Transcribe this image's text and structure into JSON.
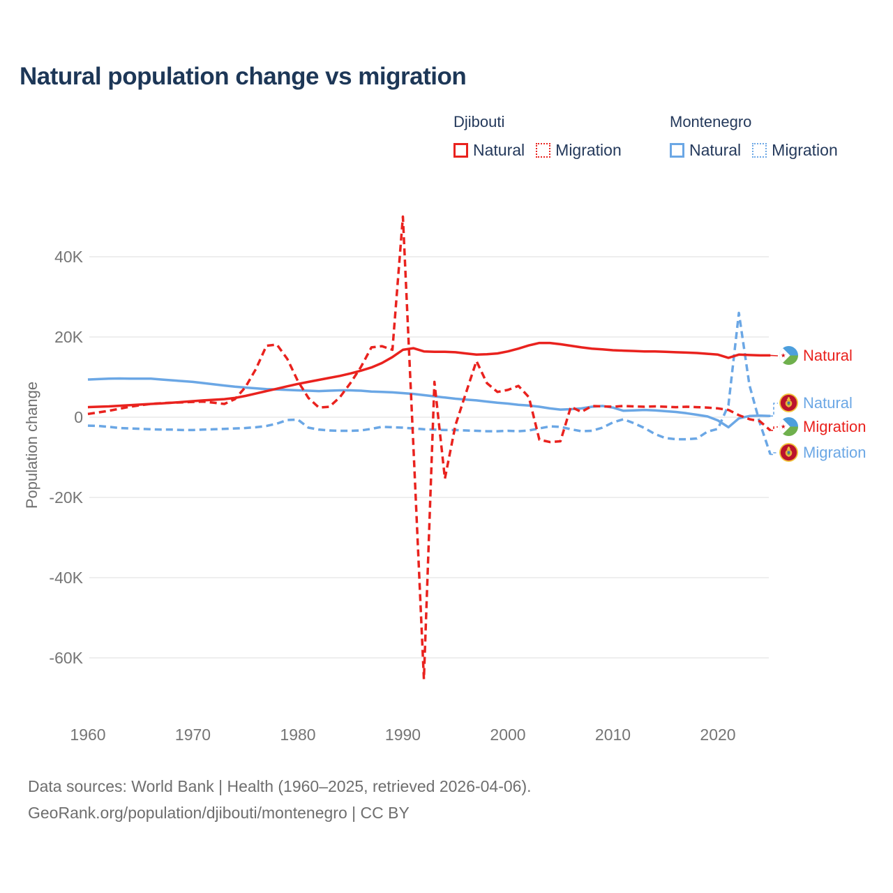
{
  "title": "Natural population change vs migration",
  "colors": {
    "djibouti": "#e9221e",
    "montenegro": "#6ba7e5",
    "title_text": "#1d3757",
    "legend_text": "#24395b",
    "axis_text": "#757575",
    "grid": "#e8e8e8",
    "footer_text": "#6e6e6e"
  },
  "legend": {
    "groups": [
      {
        "country": "Djibouti",
        "items": [
          {
            "label": "Natural",
            "style": "solid"
          },
          {
            "label": "Migration",
            "style": "dashed"
          }
        ]
      },
      {
        "country": "Montenegro",
        "items": [
          {
            "label": "Natural",
            "style": "solid"
          },
          {
            "label": "Migration",
            "style": "dashed"
          }
        ]
      }
    ]
  },
  "y_axis_title": "Population change",
  "end_labels": [
    {
      "label": "Natural",
      "country": "Djibouti",
      "color": "red"
    },
    {
      "label": "Natural",
      "country": "Montenegro",
      "color": "blue"
    },
    {
      "label": "Migration",
      "country": "Djibouti",
      "color": "red"
    },
    {
      "label": "Migration",
      "country": "Montenegro",
      "color": "blue"
    }
  ],
  "footer": {
    "line1": "Data sources: World Bank | Health (1960–2025, retrieved 2026-04-06).",
    "line2": "GeoRank.org/population/djibouti/montenegro | CC BY"
  },
  "chart_data": {
    "type": "line",
    "title": "Natural population change vs migration",
    "xlabel": "",
    "ylabel": "Population change",
    "x_start": 1960,
    "x_end": 2025,
    "x_ticks": [
      1960,
      1970,
      1980,
      1990,
      2000,
      2010,
      2020
    ],
    "y_ticks_k": [
      40,
      20,
      0,
      -20,
      -40,
      -60
    ],
    "y_tick_labels": [
      "40K",
      "20K",
      "0",
      "-20K",
      "-40K",
      "-60K"
    ],
    "ylim_k": [
      -68,
      52
    ],
    "grid": true,
    "legend_position": "top-right",
    "units": "persons per year (K = thousands)",
    "series": [
      {
        "name": "Montenegro Migration",
        "color": "#6ba7e5",
        "dash": "dashed",
        "values_k": [
          -2.1,
          -2.2,
          -2.4,
          -2.7,
          -2.8,
          -2.9,
          -3.0,
          -3.1,
          -3.1,
          -3.2,
          -3.2,
          -3.1,
          -3.0,
          -2.9,
          -2.8,
          -2.7,
          -2.5,
          -2.2,
          -1.6,
          -0.7,
          -0.6,
          -2.6,
          -3.1,
          -3.3,
          -3.4,
          -3.4,
          -3.3,
          -2.9,
          -2.4,
          -2.5,
          -2.6,
          -2.8,
          -3.0,
          -3.1,
          -3.2,
          -3.2,
          -3.3,
          -3.4,
          -3.5,
          -3.5,
          -3.4,
          -3.5,
          -3.3,
          -2.8,
          -2.3,
          -2.4,
          -3.0,
          -3.5,
          -3.4,
          -2.6,
          -1.3,
          -0.5,
          -1.5,
          -2.7,
          -4.2,
          -5.2,
          -5.5,
          -5.5,
          -5.3,
          -3.6,
          -2.9,
          3.0,
          26.0,
          8.0,
          -1.5,
          -9.3
        ]
      },
      {
        "name": "Montenegro Natural",
        "color": "#6ba7e5",
        "dash": "solid",
        "values_k": [
          9.4,
          9.5,
          9.6,
          9.65,
          9.6,
          9.6,
          9.6,
          9.4,
          9.2,
          9.0,
          8.8,
          8.5,
          8.2,
          7.9,
          7.6,
          7.4,
          7.2,
          7.0,
          6.9,
          6.8,
          6.7,
          6.6,
          6.5,
          6.6,
          6.7,
          6.7,
          6.6,
          6.4,
          6.3,
          6.2,
          6.0,
          5.8,
          5.5,
          5.2,
          4.9,
          4.6,
          4.4,
          4.2,
          3.9,
          3.6,
          3.4,
          3.1,
          2.9,
          2.6,
          2.2,
          1.9,
          2.0,
          2.2,
          2.6,
          2.8,
          2.4,
          1.6,
          1.7,
          1.8,
          1.7,
          1.5,
          1.3,
          1.0,
          0.6,
          0.2,
          -0.8,
          -2.5,
          -0.3,
          0.3,
          0.4,
          0.3
        ]
      },
      {
        "name": "Djibouti Migration",
        "color": "#e9221e",
        "dash": "dashed",
        "values_k": [
          0.8,
          1.2,
          1.6,
          2.1,
          2.6,
          3.0,
          3.3,
          3.5,
          3.6,
          3.7,
          3.8,
          3.9,
          3.6,
          3.3,
          4.5,
          7.5,
          12.0,
          17.8,
          18.1,
          14.5,
          9.0,
          4.8,
          2.4,
          2.6,
          5.0,
          8.5,
          12.5,
          17.4,
          17.7,
          16.8,
          50.0,
          -7.0,
          -65.3,
          8.8,
          -15.3,
          -2.0,
          6.0,
          14.0,
          8.5,
          6.3,
          6.8,
          7.8,
          5.0,
          -5.6,
          -6.2,
          -6.0,
          2.6,
          1.3,
          2.8,
          2.7,
          2.6,
          2.8,
          2.7,
          2.6,
          2.7,
          2.6,
          2.5,
          2.6,
          2.5,
          2.4,
          2.2,
          1.8,
          0.5,
          -0.5,
          -1.0,
          -3.3
        ]
      },
      {
        "name": "Djibouti Natural",
        "color": "#e9221e",
        "dash": "solid",
        "values_k": [
          2.5,
          2.6,
          2.7,
          2.85,
          3.0,
          3.15,
          3.3,
          3.45,
          3.6,
          3.8,
          4.0,
          4.2,
          4.35,
          4.5,
          4.8,
          5.3,
          5.9,
          6.5,
          7.1,
          7.7,
          8.3,
          8.8,
          9.3,
          9.8,
          10.3,
          10.9,
          11.6,
          12.4,
          13.5,
          15.0,
          16.8,
          17.2,
          16.4,
          16.3,
          16.3,
          16.2,
          15.9,
          15.6,
          15.7,
          15.9,
          16.4,
          17.1,
          17.9,
          18.5,
          18.5,
          18.2,
          17.8,
          17.4,
          17.1,
          16.9,
          16.7,
          16.6,
          16.5,
          16.4,
          16.4,
          16.3,
          16.2,
          16.1,
          16.0,
          15.8,
          15.6,
          14.8,
          15.6,
          15.5,
          15.4,
          15.4
        ]
      }
    ]
  }
}
